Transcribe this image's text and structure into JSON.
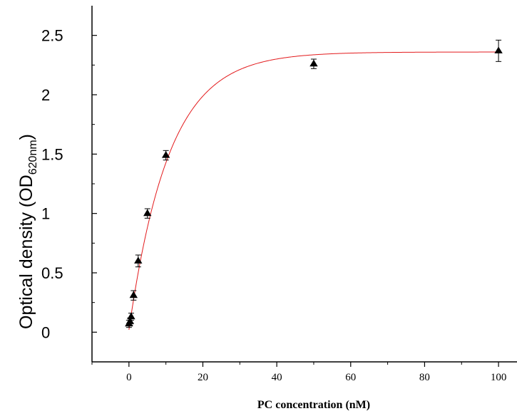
{
  "chart_data": {
    "type": "scatter",
    "title": "",
    "xlabel": "PC concentration (nM)",
    "ylabel": {
      "main": "Optical density (OD",
      "subscript": "620nm",
      "close": ")"
    },
    "xlim": [
      -10,
      105
    ],
    "ylim": [
      -0.25,
      2.75
    ],
    "x_ticks": [
      0,
      20,
      40,
      60,
      80,
      100
    ],
    "x_tick_labels": [
      "0",
      "20",
      "40",
      "60",
      "80",
      "100"
    ],
    "y_ticks": [
      0,
      0.5,
      1,
      1.5,
      2,
      2.5
    ],
    "y_tick_labels": [
      "0",
      "0.5",
      "1",
      "1.5",
      "2",
      "2.5"
    ],
    "grid": false,
    "series": [
      {
        "marker": "triangle",
        "x": [
          0,
          0.3,
          0.6,
          1.25,
          2.5,
          5,
          10,
          50,
          100
        ],
        "y": [
          0.07,
          0.09,
          0.13,
          0.31,
          0.6,
          1.0,
          1.49,
          2.26,
          2.37
        ],
        "error": [
          0.03,
          0.03,
          0.03,
          0.04,
          0.05,
          0.04,
          0.04,
          0.04,
          0.09
        ]
      }
    ],
    "fit_curve": {
      "model": "one-site saturation",
      "color": "#e31a1c",
      "y0": 0.02,
      "ymax": 2.36,
      "k": 0.092
    },
    "colors": {
      "marker": "#000000",
      "curve": "#e31a1c",
      "axis": "#000000"
    }
  }
}
